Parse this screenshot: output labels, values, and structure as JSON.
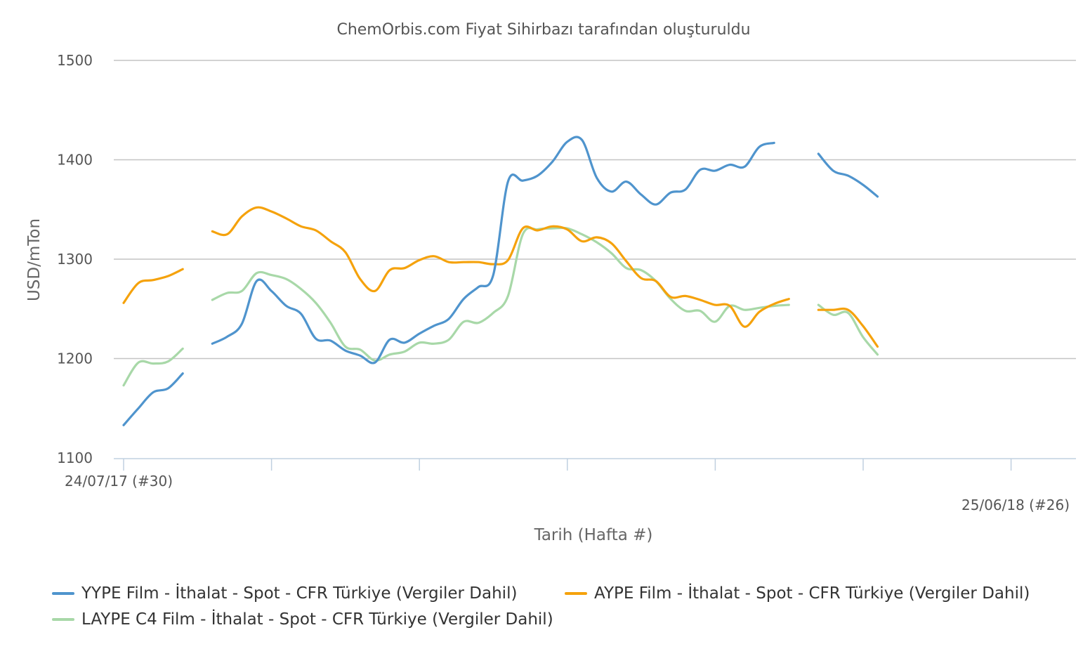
{
  "chart_data": {
    "type": "line",
    "title": "ChemOrbis.com Fiyat Sihirbazı tarafından oluşturuldu",
    "xlabel": "Tarih (Hafta #)",
    "ylabel": "USD/mTon",
    "ylim": [
      1100,
      1500
    ],
    "yticks": [
      "1500",
      "1400",
      "1300",
      "1200",
      "1100"
    ],
    "x_start_label": "24/07/17 (#30)",
    "x_end_label": "25/06/18 (#26)",
    "grid": true,
    "legend_position": "bottom",
    "series": [
      {
        "name": "YYPE Film - İthalat - Spot - CFR Türkiye  (Vergiler Dahil)",
        "color": "#4f94cd",
        "points": [
          [
            0,
            1133
          ],
          [
            1,
            1150
          ],
          [
            2,
            1166
          ],
          [
            3,
            1170
          ],
          [
            4,
            1185
          ],
          [
            6,
            1215
          ],
          [
            7,
            1222
          ],
          [
            8,
            1235
          ],
          [
            9,
            1278
          ],
          [
            10,
            1268
          ],
          [
            11,
            1253
          ],
          [
            12,
            1245
          ],
          [
            13,
            1220
          ],
          [
            14,
            1218
          ],
          [
            15,
            1208
          ],
          [
            16,
            1203
          ],
          [
            17,
            1196
          ],
          [
            18,
            1219
          ],
          [
            19,
            1216
          ],
          [
            20,
            1225
          ],
          [
            21,
            1233
          ],
          [
            22,
            1240
          ],
          [
            23,
            1260
          ],
          [
            24,
            1272
          ],
          [
            25,
            1284
          ],
          [
            26,
            1378
          ],
          [
            27,
            1379
          ],
          [
            28,
            1384
          ],
          [
            29,
            1398
          ],
          [
            30,
            1418
          ],
          [
            31,
            1420
          ],
          [
            32,
            1382
          ],
          [
            33,
            1368
          ],
          [
            34,
            1378
          ],
          [
            35,
            1365
          ],
          [
            36,
            1355
          ],
          [
            37,
            1367
          ],
          [
            38,
            1370
          ],
          [
            39,
            1390
          ],
          [
            40,
            1389
          ],
          [
            41,
            1395
          ],
          [
            42,
            1393
          ],
          [
            43,
            1413
          ],
          [
            44,
            1417
          ],
          [
            47,
            1406
          ],
          [
            48,
            1389
          ],
          [
            49,
            1384
          ],
          [
            50,
            1375
          ],
          [
            51,
            1363
          ]
        ]
      },
      {
        "name": "AYPE Film - İthalat - Spot - CFR Türkiye  (Vergiler Dahil)",
        "color": "#f5a20c",
        "points": [
          [
            0,
            1256
          ],
          [
            1,
            1276
          ],
          [
            2,
            1279
          ],
          [
            3,
            1283
          ],
          [
            4,
            1290
          ],
          [
            6,
            1328
          ],
          [
            7,
            1325
          ],
          [
            8,
            1343
          ],
          [
            9,
            1352
          ],
          [
            10,
            1348
          ],
          [
            11,
            1341
          ],
          [
            12,
            1333
          ],
          [
            13,
            1329
          ],
          [
            14,
            1318
          ],
          [
            15,
            1307
          ],
          [
            16,
            1280
          ],
          [
            17,
            1268
          ],
          [
            18,
            1289
          ],
          [
            19,
            1291
          ],
          [
            20,
            1299
          ],
          [
            21,
            1303
          ],
          [
            22,
            1297
          ],
          [
            23,
            1297
          ],
          [
            24,
            1297
          ],
          [
            25,
            1295
          ],
          [
            26,
            1299
          ],
          [
            27,
            1331
          ],
          [
            28,
            1329
          ],
          [
            29,
            1333
          ],
          [
            30,
            1330
          ],
          [
            31,
            1318
          ],
          [
            32,
            1322
          ],
          [
            33,
            1316
          ],
          [
            34,
            1298
          ],
          [
            35,
            1281
          ],
          [
            36,
            1278
          ],
          [
            37,
            1262
          ],
          [
            38,
            1263
          ],
          [
            39,
            1259
          ],
          [
            40,
            1254
          ],
          [
            41,
            1253
          ],
          [
            42,
            1232
          ],
          [
            43,
            1247
          ],
          [
            44,
            1255
          ],
          [
            45,
            1260
          ],
          [
            47,
            1249
          ],
          [
            48,
            1249
          ],
          [
            49,
            1249
          ],
          [
            50,
            1233
          ],
          [
            51,
            1212
          ]
        ]
      },
      {
        "name": "LAYPE C4 Film - İthalat - Spot - CFR Türkiye  (Vergiler Dahil)",
        "color": "#a8d8a8",
        "points": [
          [
            0,
            1173
          ],
          [
            1,
            1196
          ],
          [
            2,
            1195
          ],
          [
            3,
            1197
          ],
          [
            4,
            1210
          ],
          [
            6,
            1259
          ],
          [
            7,
            1266
          ],
          [
            8,
            1268
          ],
          [
            9,
            1286
          ],
          [
            10,
            1284
          ],
          [
            11,
            1280
          ],
          [
            12,
            1270
          ],
          [
            13,
            1256
          ],
          [
            14,
            1236
          ],
          [
            15,
            1212
          ],
          [
            16,
            1209
          ],
          [
            17,
            1198
          ],
          [
            18,
            1204
          ],
          [
            19,
            1207
          ],
          [
            20,
            1216
          ],
          [
            21,
            1215
          ],
          [
            22,
            1219
          ],
          [
            23,
            1237
          ],
          [
            24,
            1236
          ],
          [
            25,
            1246
          ],
          [
            26,
            1263
          ],
          [
            27,
            1325
          ],
          [
            28,
            1330
          ],
          [
            29,
            1331
          ],
          [
            30,
            1331
          ],
          [
            31,
            1325
          ],
          [
            32,
            1317
          ],
          [
            33,
            1306
          ],
          [
            34,
            1291
          ],
          [
            35,
            1289
          ],
          [
            36,
            1278
          ],
          [
            37,
            1260
          ],
          [
            38,
            1248
          ],
          [
            39,
            1248
          ],
          [
            40,
            1237
          ],
          [
            41,
            1253
          ],
          [
            42,
            1249
          ],
          [
            43,
            1251
          ],
          [
            44,
            1253
          ],
          [
            45,
            1254
          ],
          [
            47,
            1254
          ],
          [
            48,
            1244
          ],
          [
            49,
            1246
          ],
          [
            50,
            1222
          ],
          [
            51,
            1204
          ]
        ]
      }
    ]
  }
}
